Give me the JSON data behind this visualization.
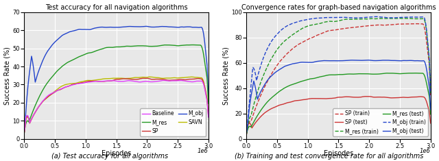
{
  "left_title": "Test accuracy for all navigation algorithms",
  "right_title": "Convergence rates for graph-based navigation algorithms",
  "left_caption": "(a) Test accuracy for all algorithms",
  "right_caption": "(b) Training and test convergence rate for all algorithms",
  "xlabel": "Episodes",
  "ylabel": "Success Rate (%)",
  "x_max": 3000000,
  "left_ylim": [
    0,
    70
  ],
  "right_ylim": [
    0,
    100
  ],
  "left_yticks": [
    0,
    10,
    20,
    30,
    40,
    50,
    60,
    70
  ],
  "right_yticks": [
    0,
    20,
    40,
    60,
    80,
    100
  ],
  "xticks": [
    0.0,
    0.5,
    1.0,
    1.5,
    2.0,
    2.5,
    3.0
  ],
  "colors": {
    "baseline": "#e040fb",
    "sp": "#cc3333",
    "savn": "#bbbb00",
    "m_res": "#229922",
    "m_obj": "#2244cc"
  },
  "bg_color": "#e8e8e8",
  "grid_color": "#ffffff",
  "seed": 7
}
